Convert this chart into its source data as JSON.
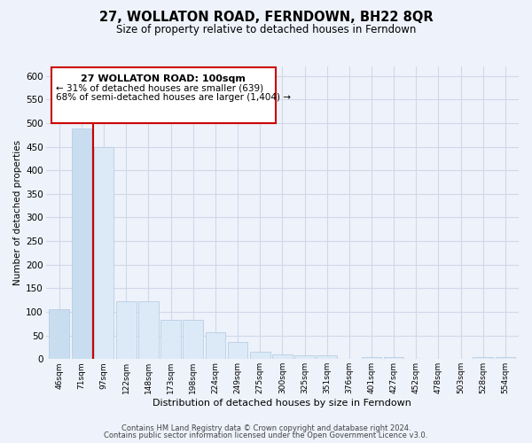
{
  "title": "27, WOLLATON ROAD, FERNDOWN, BH22 8QR",
  "subtitle": "Size of property relative to detached houses in Ferndown",
  "xlabel": "Distribution of detached houses by size in Ferndown",
  "ylabel": "Number of detached properties",
  "bar_labels": [
    "46sqm",
    "71sqm",
    "97sqm",
    "122sqm",
    "148sqm",
    "173sqm",
    "198sqm",
    "224sqm",
    "249sqm",
    "275sqm",
    "300sqm",
    "325sqm",
    "351sqm",
    "376sqm",
    "401sqm",
    "427sqm",
    "452sqm",
    "478sqm",
    "503sqm",
    "528sqm",
    "554sqm"
  ],
  "bar_values": [
    105,
    488,
    450,
    122,
    122,
    83,
    83,
    57,
    36,
    16,
    10,
    8,
    8,
    0,
    4,
    4,
    0,
    0,
    0,
    5,
    5
  ],
  "property_line_after_idx": 1,
  "annotation_title": "27 WOLLATON ROAD: 100sqm",
  "annotation_line1": "← 31% of detached houses are smaller (639)",
  "annotation_line2": "68% of semi-detached houses are larger (1,404) →",
  "bar_color_left": "#c8ddf0",
  "bar_color_right": "#dceaf7",
  "bar_edge_color": "#b0c8e0",
  "property_line_color": "#cc0000",
  "annotation_box_edge_color": "#cc0000",
  "annotation_box_face_color": "white",
  "ylim": [
    0,
    620
  ],
  "yticks": [
    0,
    50,
    100,
    150,
    200,
    250,
    300,
    350,
    400,
    450,
    500,
    550,
    600
  ],
  "grid_color": "#d0d8e8",
  "background_color": "#eef2fa",
  "footer_line1": "Contains HM Land Registry data © Crown copyright and database right 2024.",
  "footer_line2": "Contains public sector information licensed under the Open Government Licence v3.0."
}
